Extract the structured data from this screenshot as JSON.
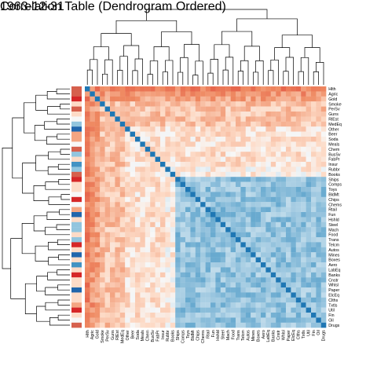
{
  "chart_data": {
    "type": "heatmap",
    "title": "Correlation Table (Dendrogram Ordered)",
    "subtitle": "1963-12-31",
    "labels": [
      "Hlth",
      "Agric",
      "Gold",
      "Smoke",
      "PerSv",
      "Guns",
      "RlEst",
      "MedEq",
      "Other",
      "Beer",
      "Soda",
      "Meals",
      "Chem",
      "BusSv",
      "FabPr",
      "Insur",
      "Rubbr",
      "Books",
      "Ships",
      "Comps",
      "Toys",
      "BldMt",
      "Chips",
      "Chems",
      "Rtail",
      "Fun",
      "Hshld",
      "Steel",
      "Mach",
      "Food",
      "Trans",
      "Telcm",
      "Autos",
      "Mines",
      "Boxes",
      "Aero",
      "LabEq",
      "Banks",
      "Cnstr",
      "Whlsl",
      "Paper",
      "ElcEq",
      "Clths",
      "Txtls",
      "Util",
      "Fin",
      "Oil",
      "Drugs"
    ],
    "value_range": [
      -1,
      1
    ],
    "diagonal": 1,
    "colormap": "diverging red-white-blue (RdBu)",
    "grid": false,
    "side_color_bar": true,
    "dendrograms": [
      "top",
      "left"
    ]
  }
}
